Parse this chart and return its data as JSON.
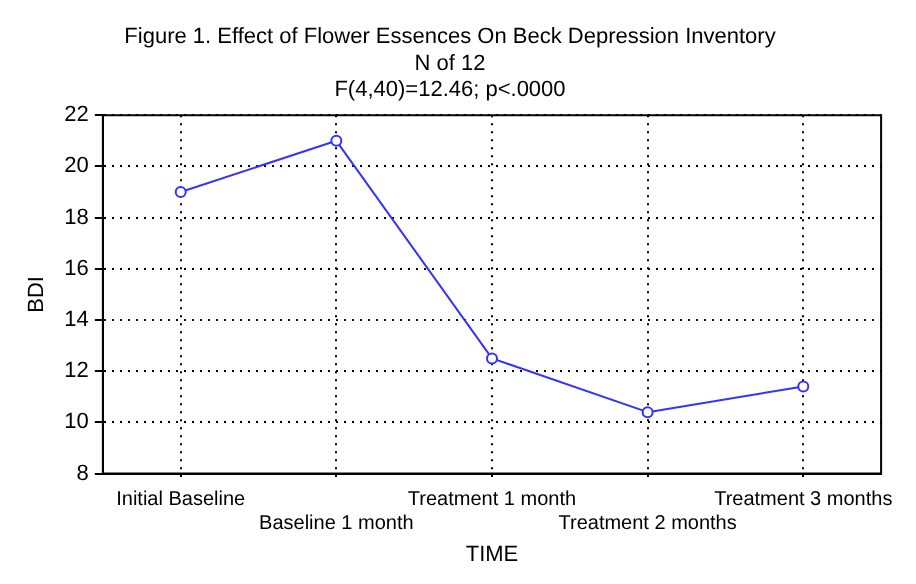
{
  "chart_data": {
    "type": "line",
    "title": "Figure 1. Effect of Flower Essences On Beck Depression Inventory",
    "subtitle": "N of 12\nF(4,40)=12.46; p<.0000",
    "xlabel": "TIME",
    "ylabel": "BDI",
    "categories": [
      "Initial Baseline",
      "Baseline 1 month",
      "Treatment 1 month",
      "Treatment 2 months",
      "Treatment 3 months"
    ],
    "series": [
      {
        "color": "#3333ff",
        "values": [
          19,
          21,
          12.5,
          10.4,
          11.4
        ]
      }
    ],
    "ylim": [
      8,
      22
    ],
    "yticks": [
      8,
      10,
      12,
      14,
      16,
      18,
      20,
      22
    ],
    "grid": true,
    "legend": false,
    "marker": "circle",
    "line_style": "solid"
  }
}
